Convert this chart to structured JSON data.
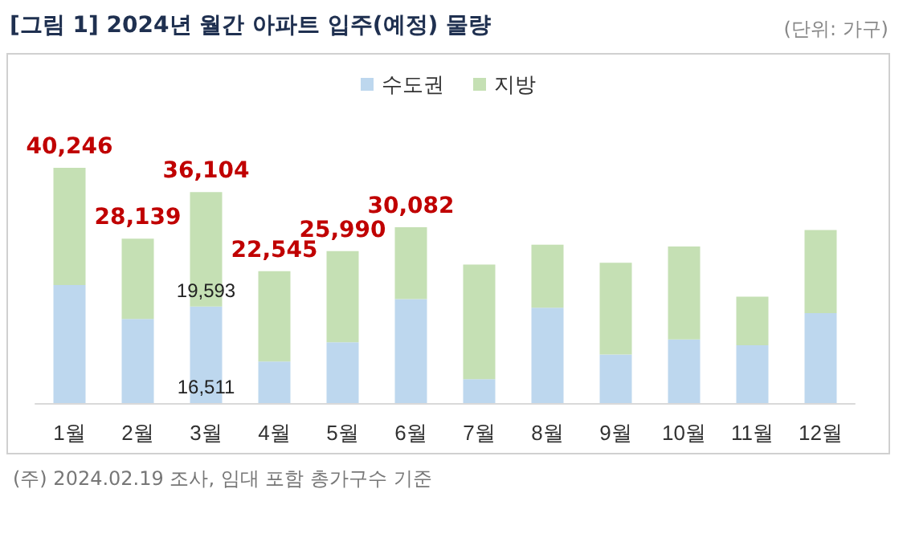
{
  "chart_data": {
    "type": "bar",
    "title": "[그림 1] 2024년 월간 아파트 입주(예정) 물량",
    "categories": [
      "1월",
      "2월",
      "3월",
      "4월",
      "5월",
      "6월",
      "7월",
      "8월",
      "9월",
      "10월",
      "11월",
      "12월"
    ],
    "stacked": true,
    "series": [
      {
        "name": "수도권",
        "color": "#bdd7ee",
        "values": [
          20200,
          14400,
          16511,
          7100,
          10400,
          17800,
          4100,
          16300,
          8300,
          10900,
          9900,
          15400
        ],
        "value_labels": [
          null,
          null,
          "16,511",
          null,
          null,
          null,
          null,
          null,
          null,
          null,
          null,
          null
        ]
      },
      {
        "name": "지방",
        "color": "#c5e0b4",
        "values": [
          20046,
          13739,
          19593,
          15445,
          15590,
          12282,
          19600,
          10800,
          15700,
          15900,
          8300,
          14200
        ],
        "value_labels": [
          null,
          null,
          "19,593",
          null,
          null,
          null,
          null,
          null,
          null,
          null,
          null,
          null
        ]
      }
    ],
    "totals": [
      "40,246",
      "28,139",
      "36,104",
      "22,545",
      "25,990",
      "30,082",
      null,
      null,
      null,
      null,
      null,
      null
    ],
    "legend": "top",
    "tick_labels": "x",
    "annotations": [
      "(단위: 가구)",
      "(주) 2024.02.19 조사, 임대 포함 총가구수 기준"
    ]
  }
}
